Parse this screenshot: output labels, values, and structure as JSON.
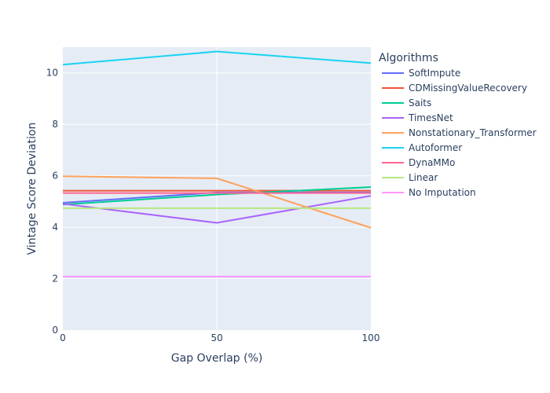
{
  "chart_data": {
    "type": "line",
    "title": "",
    "xlabel": "Gap Overlap (%)",
    "ylabel": "Vintage Score Deviation",
    "x": [
      0,
      50,
      100
    ],
    "xlim": [
      0,
      100
    ],
    "ylim": [
      0,
      11
    ],
    "xticks": [
      "0",
      "50",
      "100"
    ],
    "yticks": [
      "0",
      "2",
      "4",
      "6",
      "8",
      "10"
    ],
    "grid": true,
    "background_color": "#E5ECF6",
    "legend": {
      "title": "Algorithms",
      "position": "right"
    },
    "series": [
      {
        "name": "SoftImpute",
        "color": "#636EFA",
        "values": [
          4.95,
          5.35,
          5.35
        ]
      },
      {
        "name": "CDMissingValueRecovery",
        "color": "#EF553B",
        "values": [
          5.42,
          5.42,
          5.42
        ]
      },
      {
        "name": "Saits",
        "color": "#00CC96",
        "values": [
          4.88,
          5.27,
          5.56
        ]
      },
      {
        "name": "TimesNet",
        "color": "#AB63FA",
        "values": [
          4.91,
          4.17,
          5.22
        ]
      },
      {
        "name": "Nonstationary_Transformer",
        "color": "#FFA15A",
        "values": [
          5.98,
          5.9,
          3.98
        ]
      },
      {
        "name": "Autoformer",
        "color": "#19D3F3",
        "values": [
          10.32,
          10.83,
          10.38
        ]
      },
      {
        "name": "DynaMMo",
        "color": "#FF6692",
        "values": [
          5.33,
          5.33,
          5.33
        ]
      },
      {
        "name": "Linear",
        "color": "#B6E880",
        "values": [
          4.74,
          4.74,
          4.74
        ]
      },
      {
        "name": "No Imputation",
        "color": "#FF97FF",
        "values": [
          2.08,
          2.08,
          2.08
        ]
      }
    ]
  }
}
